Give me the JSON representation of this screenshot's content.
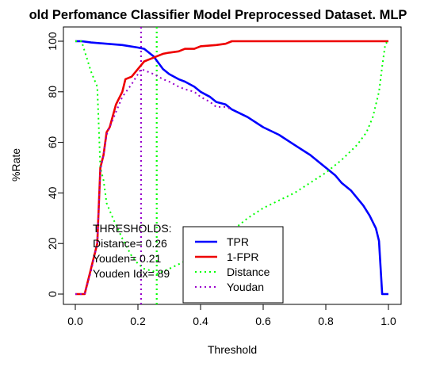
{
  "chart_data": {
    "type": "line",
    "title": "old Perfomance Classifier Model Preprocessed Dataset. MLP",
    "xlabel": "Threshold",
    "ylabel": "%Rate",
    "xlim": [
      0.0,
      1.0
    ],
    "ylim": [
      0,
      100
    ],
    "x_ticks": [
      "0.0",
      "0.2",
      "0.4",
      "0.6",
      "0.8",
      "1.0"
    ],
    "y_ticks": [
      "0",
      "20",
      "40",
      "60",
      "80",
      "100"
    ],
    "grid": false,
    "legend_position": "bottom-center",
    "series": [
      {
        "name": "TPR",
        "color": "#0000ff",
        "style": "solid",
        "x": [
          0.0,
          0.02,
          0.05,
          0.1,
          0.15,
          0.2,
          0.22,
          0.25,
          0.28,
          0.3,
          0.33,
          0.35,
          0.38,
          0.4,
          0.43,
          0.45,
          0.48,
          0.5,
          0.55,
          0.6,
          0.65,
          0.7,
          0.75,
          0.78,
          0.8,
          0.83,
          0.85,
          0.88,
          0.9,
          0.92,
          0.94,
          0.96,
          0.97,
          0.98,
          0.99,
          1.0
        ],
        "y": [
          100,
          100,
          99.5,
          99,
          98.5,
          97.5,
          97,
          94,
          89,
          87,
          85,
          84,
          82,
          80,
          78,
          76,
          75,
          73,
          70,
          66,
          63,
          59,
          55,
          52,
          50,
          47,
          44,
          41,
          38,
          35,
          31,
          26,
          21,
          0,
          0,
          0
        ]
      },
      {
        "name": "1-FPR",
        "color": "#ee0000",
        "style": "solid",
        "x": [
          0.0,
          0.03,
          0.05,
          0.07,
          0.08,
          0.09,
          0.1,
          0.11,
          0.13,
          0.15,
          0.16,
          0.18,
          0.2,
          0.22,
          0.24,
          0.26,
          0.28,
          0.3,
          0.33,
          0.35,
          0.38,
          0.4,
          0.45,
          0.48,
          0.5,
          0.6,
          0.7,
          0.8,
          0.9,
          1.0
        ],
        "y": [
          0,
          0,
          10,
          20,
          50,
          55,
          64,
          66,
          75,
          80,
          85,
          86,
          89,
          92,
          93,
          94,
          95,
          95.5,
          96,
          97,
          97,
          98,
          98.5,
          99,
          100,
          100,
          100,
          100,
          100,
          100
        ]
      },
      {
        "name": "Distance",
        "color": "#00ff00",
        "style": "dotted",
        "x": [
          0.0,
          0.02,
          0.05,
          0.07,
          0.08,
          0.09,
          0.1,
          0.12,
          0.15,
          0.18,
          0.2,
          0.22,
          0.25,
          0.26,
          0.3,
          0.35,
          0.4,
          0.5,
          0.55,
          0.6,
          0.7,
          0.75,
          0.8,
          0.85,
          0.9,
          0.93,
          0.95,
          0.97,
          0.98,
          0.99,
          1.0
        ],
        "y": [
          100,
          100,
          88,
          82,
          50,
          45,
          36,
          30,
          22,
          15,
          12,
          10,
          9,
          8,
          10,
          13,
          17,
          25,
          30,
          34,
          40,
          44,
          48,
          53,
          59,
          64,
          70,
          80,
          90,
          99,
          100
        ]
      },
      {
        "name": "Youdan",
        "color": "#9900cc",
        "style": "dotted",
        "x": [
          0.0,
          0.03,
          0.05,
          0.07,
          0.08,
          0.09,
          0.1,
          0.13,
          0.15,
          0.18,
          0.2,
          0.21,
          0.23,
          0.25,
          0.28,
          0.3,
          0.33,
          0.35,
          0.38,
          0.4,
          0.43,
          0.45,
          0.48,
          0.5
        ],
        "y": [
          0,
          0,
          9,
          20,
          49,
          55,
          63,
          72,
          78,
          83,
          87,
          89,
          88,
          87,
          85,
          84,
          82,
          81,
          80,
          78,
          76,
          74,
          74,
          73
        ]
      }
    ],
    "vertical_lines": [
      {
        "x": 0.21,
        "color": "#9900cc",
        "style": "dotted"
      },
      {
        "x": 0.26,
        "color": "#00ff00",
        "style": "dotted"
      }
    ],
    "annotations": [
      "THRESHOLDS:",
      "Distance= 0.26",
      "Youden= 0.21",
      "Youden Idx= 89"
    ]
  }
}
